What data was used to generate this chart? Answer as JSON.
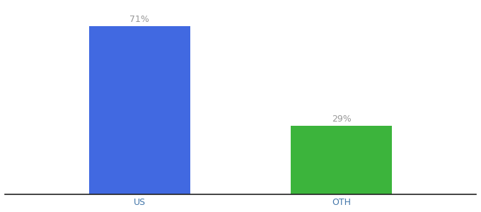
{
  "categories": [
    "US",
    "OTH"
  ],
  "values": [
    71,
    29
  ],
  "bar_colors": [
    "#4169e1",
    "#3cb43c"
  ],
  "label_texts": [
    "71%",
    "29%"
  ],
  "background_color": "#ffffff",
  "ylim": [
    0,
    80
  ],
  "bar_width": 0.18,
  "label_color": "#999999",
  "label_fontsize": 9,
  "tick_fontsize": 9,
  "tick_color": "#4477aa",
  "spine_color": "#222222",
  "x_positions": [
    0.32,
    0.68
  ]
}
